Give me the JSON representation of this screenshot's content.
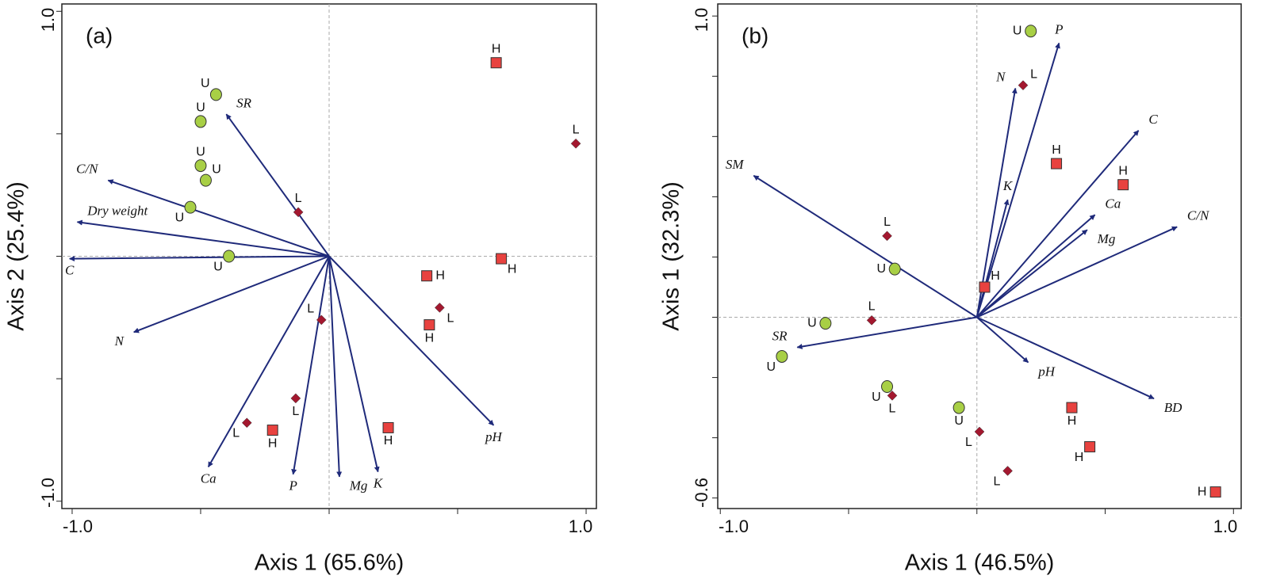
{
  "chart_data": [
    {
      "type": "biplot",
      "panel_label": "(a)",
      "xlabel": "Axis 1 (65.6%)",
      "ylabel": "Axis 2 (25.4%)",
      "xlim": [
        -1.04,
        1.04
      ],
      "ylim": [
        -1.03,
        1.03
      ],
      "xticks": [
        {
          "value": -1,
          "label": "-1.0"
        },
        {
          "value": 1,
          "label": "1.0"
        }
      ],
      "yticks": [
        {
          "value": -1,
          "label": "-1.0"
        },
        {
          "value": 1,
          "label": "1.0"
        }
      ],
      "xminorticks": [
        -0.5,
        0,
        0.5
      ],
      "yminorticks": [
        -0.5,
        0,
        0.5
      ],
      "marker_colors": {
        "circle": "#a8cf45",
        "diamond": "#a3182f",
        "square": "#e8423f"
      },
      "arrow_color": "#1f2a7a",
      "points": [
        {
          "label": "U",
          "marker": "circle",
          "x": -0.44,
          "y": 0.66,
          "label_side": "nw"
        },
        {
          "label": "U",
          "marker": "circle",
          "x": -0.5,
          "y": 0.55,
          "label_side": "n"
        },
        {
          "label": "U",
          "marker": "circle",
          "x": -0.5,
          "y": 0.37,
          "label_side": "n"
        },
        {
          "label": "U",
          "marker": "circle",
          "x": -0.48,
          "y": 0.31,
          "label_side": "ne"
        },
        {
          "label": "U",
          "marker": "circle",
          "x": -0.54,
          "y": 0.2,
          "label_side": "sw"
        },
        {
          "label": "U",
          "marker": "circle",
          "x": -0.39,
          "y": 0.0,
          "label_side": "sw"
        },
        {
          "label": "L",
          "marker": "diamond",
          "x": 0.96,
          "y": 0.46,
          "label_side": "n"
        },
        {
          "label": "L",
          "marker": "diamond",
          "x": -0.12,
          "y": 0.18,
          "label_side": "n"
        },
        {
          "label": "L",
          "marker": "diamond",
          "x": -0.03,
          "y": -0.26,
          "label_side": "nw"
        },
        {
          "label": "L",
          "marker": "diamond",
          "x": 0.43,
          "y": -0.21,
          "label_side": "se"
        },
        {
          "label": "L",
          "marker": "diamond",
          "x": -0.13,
          "y": -0.58,
          "label_side": "s"
        },
        {
          "label": "L",
          "marker": "diamond",
          "x": -0.32,
          "y": -0.68,
          "label_side": "sw"
        },
        {
          "label": "H",
          "marker": "square",
          "x": 0.65,
          "y": 0.79,
          "label_side": "n"
        },
        {
          "label": "H",
          "marker": "square",
          "x": 0.67,
          "y": -0.01,
          "label_side": "se"
        },
        {
          "label": "H",
          "marker": "square",
          "x": 0.38,
          "y": -0.08,
          "label_side": "e"
        },
        {
          "label": "H",
          "marker": "square",
          "x": 0.39,
          "y": -0.28,
          "label_side": "s"
        },
        {
          "label": "H",
          "marker": "square",
          "x": 0.23,
          "y": -0.7,
          "label_side": "s"
        },
        {
          "label": "H",
          "marker": "square",
          "x": -0.22,
          "y": -0.71,
          "label_side": "s"
        }
      ],
      "vectors": [
        {
          "label": "SR",
          "x": -0.4,
          "y": 0.58,
          "label_side": "ne"
        },
        {
          "label": "C/N",
          "x": -0.86,
          "y": 0.31,
          "label_side": "nw"
        },
        {
          "label": "Dry weight",
          "x": -0.98,
          "y": 0.14,
          "label_side": "ne"
        },
        {
          "label": "C",
          "x": -1.01,
          "y": -0.01,
          "label_side": "s"
        },
        {
          "label": "N",
          "x": -0.76,
          "y": -0.31,
          "label_side": "sw"
        },
        {
          "label": "Ca",
          "x": -0.47,
          "y": -0.86,
          "label_side": "s"
        },
        {
          "label": "P",
          "x": -0.14,
          "y": -0.89,
          "label_side": "s"
        },
        {
          "label": "Mg",
          "x": 0.04,
          "y": -0.9,
          "label_side": "se"
        },
        {
          "label": "K",
          "x": 0.19,
          "y": -0.88,
          "label_side": "s"
        },
        {
          "label": "pH",
          "x": 0.64,
          "y": -0.69,
          "label_side": "s"
        }
      ]
    },
    {
      "type": "biplot",
      "panel_label": "(b)",
      "xlabel": "Axis 1 (46.5%)",
      "ylabel": "Axis 1 (32.3%)",
      "xlim": [
        -1.01,
        1.03
      ],
      "ylim": [
        -0.635,
        1.04
      ],
      "xticks": [
        {
          "value": -1,
          "label": "-1.0"
        },
        {
          "value": 1,
          "label": "1.0"
        }
      ],
      "yticks": [
        {
          "value": -0.6,
          "label": "-0.6"
        },
        {
          "value": 1,
          "label": "1.0"
        }
      ],
      "xminorticks": [
        -0.5,
        0,
        0.5
      ],
      "yminorticks": [
        -0.4,
        -0.2,
        0,
        0.2,
        0.4,
        0.6,
        0.8
      ],
      "marker_colors": {
        "circle": "#a8cf45",
        "diamond": "#a3182f",
        "square": "#e8423f"
      },
      "arrow_color": "#1f2a7a",
      "points": [
        {
          "label": "U",
          "marker": "circle",
          "x": 0.21,
          "y": 0.95,
          "label_side": "w"
        },
        {
          "label": "U",
          "marker": "circle",
          "x": -0.32,
          "y": 0.16,
          "label_side": "w"
        },
        {
          "label": "U",
          "marker": "circle",
          "x": -0.59,
          "y": -0.02,
          "label_side": "w"
        },
        {
          "label": "U",
          "marker": "circle",
          "x": -0.76,
          "y": -0.13,
          "label_side": "sw"
        },
        {
          "label": "U",
          "marker": "circle",
          "x": -0.35,
          "y": -0.23,
          "label_side": "sw"
        },
        {
          "label": "U",
          "marker": "circle",
          "x": -0.07,
          "y": -0.3,
          "label_side": "s"
        },
        {
          "label": "L",
          "marker": "diamond",
          "x": 0.18,
          "y": 0.77,
          "label_side": "ne"
        },
        {
          "label": "L",
          "marker": "diamond",
          "x": -0.35,
          "y": 0.27,
          "label_side": "n"
        },
        {
          "label": "L",
          "marker": "diamond",
          "x": -0.41,
          "y": -0.01,
          "label_side": "n"
        },
        {
          "label": "L",
          "marker": "diamond",
          "x": -0.33,
          "y": -0.26,
          "label_side": "s"
        },
        {
          "label": "L",
          "marker": "diamond",
          "x": 0.01,
          "y": -0.38,
          "label_side": "sw"
        },
        {
          "label": "L",
          "marker": "diamond",
          "x": 0.12,
          "y": -0.51,
          "label_side": "sw"
        },
        {
          "label": "H",
          "marker": "square",
          "x": 0.31,
          "y": 0.51,
          "label_side": "n"
        },
        {
          "label": "H",
          "marker": "square",
          "x": 0.57,
          "y": 0.44,
          "label_side": "n"
        },
        {
          "label": "H",
          "marker": "square",
          "x": 0.03,
          "y": 0.1,
          "label_side": "ne"
        },
        {
          "label": "H",
          "marker": "square",
          "x": 0.37,
          "y": -0.3,
          "label_side": "s"
        },
        {
          "label": "H",
          "marker": "square",
          "x": 0.44,
          "y": -0.43,
          "label_side": "sw"
        },
        {
          "label": "H",
          "marker": "square",
          "x": 0.93,
          "y": -0.58,
          "label_side": "w"
        }
      ],
      "vectors": [
        {
          "label": "P",
          "x": 0.32,
          "y": 0.91,
          "label_side": "n"
        },
        {
          "label": "N",
          "x": 0.15,
          "y": 0.76,
          "label_side": "nw"
        },
        {
          "label": "C",
          "x": 0.63,
          "y": 0.62,
          "label_side": "ne"
        },
        {
          "label": "SM",
          "x": -0.87,
          "y": 0.47,
          "label_side": "nw"
        },
        {
          "label": "K",
          "x": 0.12,
          "y": 0.39,
          "label_side": "n"
        },
        {
          "label": "Ca",
          "x": 0.46,
          "y": 0.34,
          "label_side": "ne"
        },
        {
          "label": "Mg",
          "x": 0.43,
          "y": 0.29,
          "label_side": "se"
        },
        {
          "label": "C/N",
          "x": 0.78,
          "y": 0.3,
          "label_side": "ne"
        },
        {
          "label": "SR",
          "x": -0.7,
          "y": -0.1,
          "label_side": "nw"
        },
        {
          "label": "pH",
          "x": 0.2,
          "y": -0.15,
          "label_side": "se"
        },
        {
          "label": "BD",
          "x": 0.69,
          "y": -0.27,
          "label_side": "se"
        }
      ]
    }
  ]
}
